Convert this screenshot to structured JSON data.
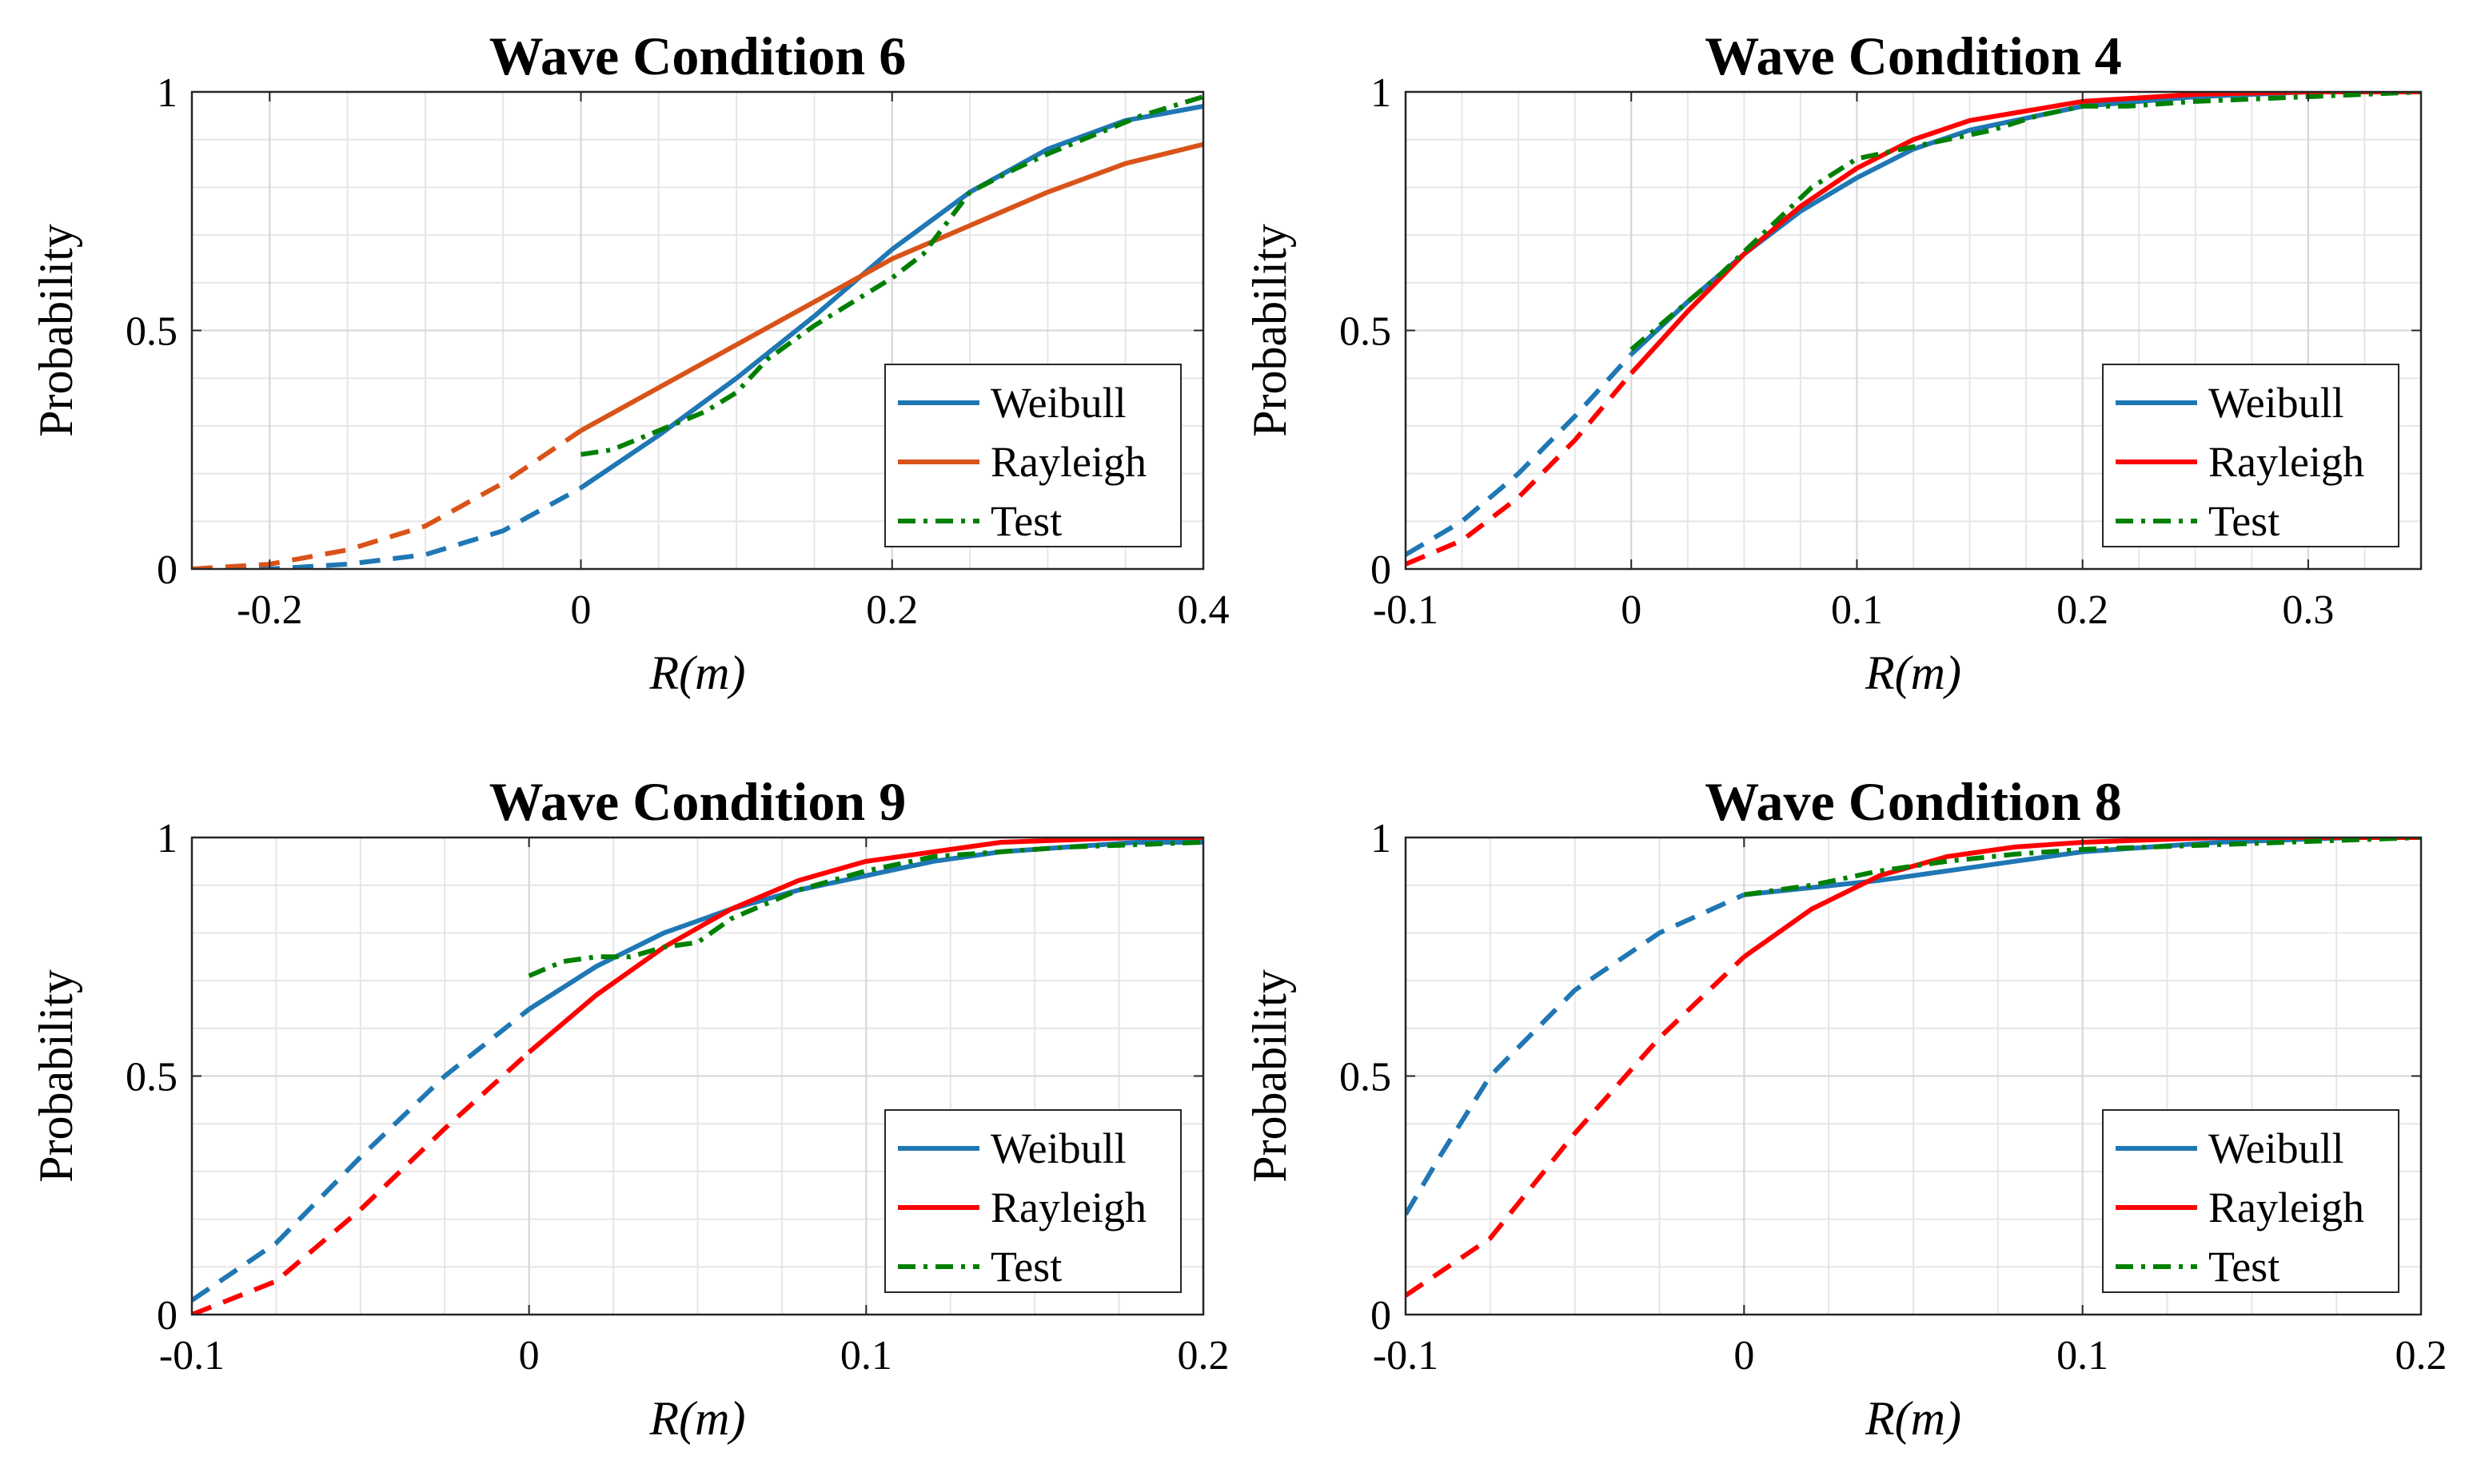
{
  "colors": {
    "weibull": "#1f77b4",
    "rayleigh_orange": "#d95319",
    "rayleigh_red": "#ff0000",
    "test": "#008000",
    "grid": "#e6e6e6",
    "axes": "#262626"
  },
  "chart_data": [
    {
      "type": "line",
      "id": "wc6",
      "title": "Wave Condition 6",
      "xlabel": "R(m)",
      "ylabel": "Probability",
      "xlim": [
        -0.25,
        0.4
      ],
      "ylim": [
        0,
        1
      ],
      "xticks": [
        -0.2,
        0,
        0.2,
        0.4
      ],
      "xtick_labels": [
        "-0.2",
        "0",
        "0.2",
        "0.4"
      ],
      "yticks": [
        0,
        0.5,
        1
      ],
      "ytick_labels": [
        "0",
        "0.5",
        "1"
      ],
      "xminor_step": 0.05,
      "yminor_step": 0.1,
      "grid": true,
      "legend": [
        "Weibull",
        "Rayleigh",
        "Test"
      ],
      "legend_position": "lower-right",
      "rayleigh_color": "#d95319",
      "series": [
        {
          "name": "Weibull",
          "style": "solid",
          "x": [
            0,
            0.05,
            0.1,
            0.15,
            0.2,
            0.25,
            0.3,
            0.35,
            0.4
          ],
          "y": [
            0.17,
            0.28,
            0.4,
            0.53,
            0.67,
            0.79,
            0.88,
            0.94,
            0.97
          ]
        },
        {
          "name": "Weibull (extrapolated)",
          "style": "dashed",
          "x": [
            -0.25,
            -0.2,
            -0.15,
            -0.1,
            -0.05,
            0
          ],
          "y": [
            0.0,
            0.0,
            0.01,
            0.03,
            0.08,
            0.17
          ]
        },
        {
          "name": "Rayleigh",
          "style": "solid",
          "x": [
            0,
            0.05,
            0.1,
            0.15,
            0.2,
            0.25,
            0.3,
            0.35,
            0.4
          ],
          "y": [
            0.29,
            0.38,
            0.47,
            0.56,
            0.65,
            0.72,
            0.79,
            0.85,
            0.89
          ]
        },
        {
          "name": "Rayleigh (extrapolated)",
          "style": "dashed",
          "x": [
            -0.25,
            -0.2,
            -0.15,
            -0.1,
            -0.05,
            0
          ],
          "y": [
            0.0,
            0.01,
            0.04,
            0.09,
            0.18,
            0.29
          ]
        },
        {
          "name": "Test",
          "style": "dashdot",
          "x": [
            0,
            0.02,
            0.05,
            0.08,
            0.1,
            0.12,
            0.15,
            0.18,
            0.2,
            0.22,
            0.25,
            0.28,
            0.3,
            0.33,
            0.36,
            0.4
          ],
          "y": [
            0.24,
            0.25,
            0.29,
            0.33,
            0.37,
            0.44,
            0.51,
            0.57,
            0.61,
            0.66,
            0.79,
            0.84,
            0.87,
            0.91,
            0.95,
            0.99
          ]
        }
      ]
    },
    {
      "type": "line",
      "id": "wc4",
      "title": "Wave Condition 4",
      "xlabel": "R(m)",
      "ylabel": "Probability",
      "xlim": [
        -0.1,
        0.35
      ],
      "ylim": [
        0,
        1
      ],
      "xticks": [
        -0.1,
        0,
        0.1,
        0.2,
        0.3
      ],
      "xtick_labels": [
        "-0.1",
        "0",
        "0.1",
        "0.2",
        "0.3"
      ],
      "yticks": [
        0,
        0.5,
        1
      ],
      "ytick_labels": [
        "0",
        "0.5",
        "1"
      ],
      "xminor_step": 0.025,
      "yminor_step": 0.1,
      "grid": true,
      "legend": [
        "Weibull",
        "Rayleigh",
        "Test"
      ],
      "legend_position": "lower-right",
      "rayleigh_color": "#ff0000",
      "series": [
        {
          "name": "Weibull",
          "style": "solid",
          "x": [
            0,
            0.025,
            0.05,
            0.075,
            0.1,
            0.125,
            0.15,
            0.2,
            0.25,
            0.3,
            0.35
          ],
          "y": [
            0.45,
            0.56,
            0.66,
            0.75,
            0.82,
            0.88,
            0.92,
            0.97,
            0.99,
            1.0,
            1.0
          ]
        },
        {
          "name": "Weibull (extrapolated)",
          "style": "dashed",
          "x": [
            -0.1,
            -0.075,
            -0.05,
            -0.025,
            0
          ],
          "y": [
            0.03,
            0.1,
            0.2,
            0.32,
            0.45
          ]
        },
        {
          "name": "Rayleigh",
          "style": "solid",
          "x": [
            0,
            0.025,
            0.05,
            0.075,
            0.1,
            0.125,
            0.15,
            0.2,
            0.25,
            0.3,
            0.35
          ],
          "y": [
            0.41,
            0.54,
            0.66,
            0.76,
            0.84,
            0.9,
            0.94,
            0.98,
            0.995,
            1.0,
            1.0
          ]
        },
        {
          "name": "Rayleigh (extrapolated)",
          "style": "dashed",
          "x": [
            -0.1,
            -0.075,
            -0.05,
            -0.025,
            0
          ],
          "y": [
            0.01,
            0.06,
            0.15,
            0.27,
            0.41
          ]
        },
        {
          "name": "Test",
          "style": "dashdot",
          "x": [
            0,
            0.02,
            0.04,
            0.06,
            0.08,
            0.1,
            0.12,
            0.14,
            0.16,
            0.18,
            0.2,
            0.22,
            0.25,
            0.3,
            0.35
          ],
          "y": [
            0.46,
            0.54,
            0.62,
            0.71,
            0.8,
            0.86,
            0.88,
            0.9,
            0.92,
            0.95,
            0.97,
            0.97,
            0.98,
            0.99,
            1.0
          ]
        }
      ]
    },
    {
      "type": "line",
      "id": "wc9",
      "title": "Wave Condition 9",
      "xlabel": "R(m)",
      "ylabel": "Probability",
      "xlim": [
        -0.1,
        0.2
      ],
      "ylim": [
        0,
        1
      ],
      "xticks": [
        -0.1,
        0,
        0.1,
        0.2
      ],
      "xtick_labels": [
        "-0.1",
        "0",
        "0.1",
        "0.2"
      ],
      "yticks": [
        0,
        0.5,
        1
      ],
      "ytick_labels": [
        "0",
        "0.5",
        "1"
      ],
      "xminor_step": 0.025,
      "yminor_step": 0.1,
      "grid": true,
      "legend": [
        "Weibull",
        "Rayleigh",
        "Test"
      ],
      "legend_position": "lower-right",
      "rayleigh_color": "#ff0000",
      "series": [
        {
          "name": "Weibull",
          "style": "solid",
          "x": [
            0,
            0.02,
            0.04,
            0.06,
            0.08,
            0.1,
            0.12,
            0.14,
            0.16,
            0.18,
            0.2
          ],
          "y": [
            0.64,
            0.73,
            0.8,
            0.85,
            0.89,
            0.92,
            0.95,
            0.97,
            0.98,
            0.99,
            0.99
          ]
        },
        {
          "name": "Weibull (extrapolated)",
          "style": "dashed",
          "x": [
            -0.1,
            -0.075,
            -0.05,
            -0.025,
            0
          ],
          "y": [
            0.03,
            0.15,
            0.33,
            0.5,
            0.64
          ]
        },
        {
          "name": "Rayleigh",
          "style": "solid",
          "x": [
            0,
            0.02,
            0.04,
            0.06,
            0.08,
            0.1,
            0.12,
            0.14,
            0.16,
            0.18,
            0.2
          ],
          "y": [
            0.55,
            0.67,
            0.77,
            0.85,
            0.91,
            0.95,
            0.97,
            0.99,
            0.995,
            1.0,
            1.0
          ]
        },
        {
          "name": "Rayleigh (extrapolated)",
          "style": "dashed",
          "x": [
            -0.1,
            -0.075,
            -0.05,
            -0.025,
            0
          ],
          "y": [
            0.0,
            0.07,
            0.22,
            0.39,
            0.55
          ]
        },
        {
          "name": "Test",
          "style": "dashdot",
          "x": [
            0,
            0.01,
            0.02,
            0.03,
            0.04,
            0.05,
            0.06,
            0.07,
            0.08,
            0.1,
            0.12,
            0.14,
            0.16,
            0.18,
            0.2
          ],
          "y": [
            0.71,
            0.74,
            0.75,
            0.75,
            0.77,
            0.78,
            0.83,
            0.86,
            0.89,
            0.93,
            0.96,
            0.97,
            0.98,
            0.985,
            0.99
          ]
        }
      ]
    },
    {
      "type": "line",
      "id": "wc8",
      "title": "Wave Condition 8",
      "xlabel": "R(m)",
      "ylabel": "Probability",
      "xlim": [
        -0.1,
        0.2
      ],
      "ylim": [
        0,
        1
      ],
      "xticks": [
        -0.1,
        0,
        0.1,
        0.2
      ],
      "xtick_labels": [
        "-0.1",
        "0",
        "0.1",
        "0.2"
      ],
      "yticks": [
        0,
        0.5,
        1
      ],
      "ytick_labels": [
        "0",
        "0.5",
        "1"
      ],
      "xminor_step": 0.025,
      "yminor_step": 0.1,
      "grid": true,
      "legend": [
        "Weibull",
        "Rayleigh",
        "Test"
      ],
      "legend_position": "lower-right",
      "rayleigh_color": "#ff0000",
      "series": [
        {
          "name": "Weibull",
          "style": "solid",
          "x": [
            0,
            0.02,
            0.04,
            0.06,
            0.08,
            0.1,
            0.12,
            0.14,
            0.16,
            0.18,
            0.2
          ],
          "y": [
            0.88,
            0.895,
            0.91,
            0.93,
            0.95,
            0.97,
            0.98,
            0.99,
            0.995,
            1.0,
            1.0
          ]
        },
        {
          "name": "Weibull (extrapolated)",
          "style": "dashed",
          "x": [
            -0.1,
            -0.09,
            -0.075,
            -0.05,
            -0.025,
            0
          ],
          "y": [
            0.21,
            0.33,
            0.5,
            0.68,
            0.8,
            0.88
          ]
        },
        {
          "name": "Rayleigh",
          "style": "solid",
          "x": [
            0,
            0.02,
            0.04,
            0.06,
            0.08,
            0.1,
            0.12,
            0.14,
            0.16,
            0.18,
            0.2
          ],
          "y": [
            0.75,
            0.85,
            0.92,
            0.96,
            0.98,
            0.99,
            0.995,
            1.0,
            1.0,
            1.0,
            1.0
          ]
        },
        {
          "name": "Rayleigh (extrapolated)",
          "style": "dashed",
          "x": [
            -0.1,
            -0.075,
            -0.05,
            -0.025,
            0
          ],
          "y": [
            0.04,
            0.16,
            0.38,
            0.58,
            0.75
          ]
        },
        {
          "name": "Test",
          "style": "dashdot",
          "x": [
            0,
            0.02,
            0.04,
            0.06,
            0.08,
            0.1,
            0.12,
            0.14,
            0.16,
            0.18,
            0.2
          ],
          "y": [
            0.88,
            0.9,
            0.93,
            0.95,
            0.965,
            0.975,
            0.98,
            0.985,
            0.99,
            0.995,
            1.0
          ]
        }
      ]
    }
  ]
}
